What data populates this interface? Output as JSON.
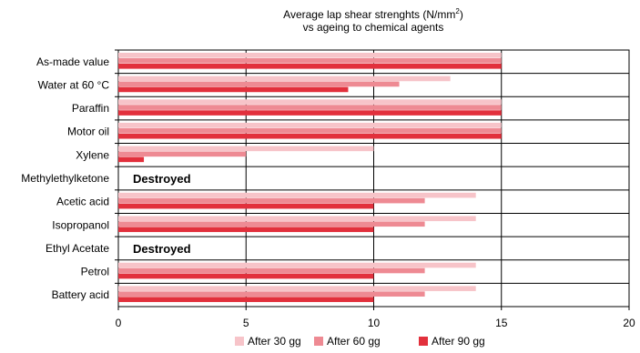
{
  "chart_data": {
    "type": "bar",
    "orientation": "horizontal",
    "title_line1": "Average lap shear strenghts  (N/mm",
    "title_sup": "2",
    "title_line1_end": ")",
    "title_line2": "vs ageing to chemical agents",
    "categories": [
      "As-made value",
      "Water at 60 °C",
      "Paraffin",
      "Motor oil",
      "Xylene",
      "Methylethylketone",
      "Acetic acid",
      "Isopropanol",
      "Ethyl Acetate",
      "Petrol",
      "Battery acid"
    ],
    "series": [
      {
        "name": "After 30 gg",
        "color": "#f7c4c9",
        "values": [
          15,
          13,
          15,
          15,
          10,
          null,
          14,
          14,
          null,
          14,
          14
        ]
      },
      {
        "name": "After 60 gg",
        "color": "#ee8a93",
        "values": [
          15,
          11,
          15,
          15,
          5,
          null,
          12,
          12,
          null,
          12,
          12
        ]
      },
      {
        "name": "After 90 gg",
        "color": "#e2303c",
        "values": [
          15,
          9,
          15,
          15,
          1,
          null,
          10,
          10,
          null,
          10,
          10
        ]
      }
    ],
    "annotations": [
      {
        "category": "Methylethylketone",
        "text": "Destroyed"
      },
      {
        "category": "Ethyl Acetate",
        "text": "Destroyed"
      }
    ],
    "xlim": [
      0,
      20
    ],
    "xticks": [
      "0",
      "5",
      "10",
      "15",
      "20"
    ],
    "grid": true,
    "legend_position": "bottom"
  }
}
